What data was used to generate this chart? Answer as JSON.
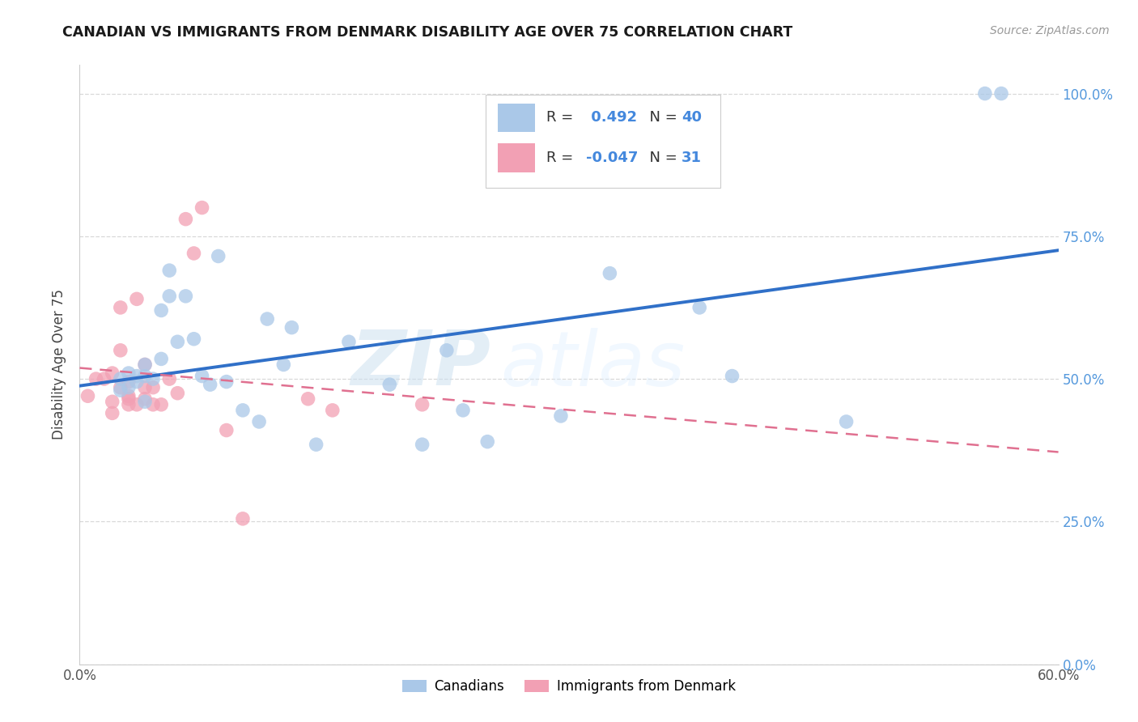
{
  "title": "CANADIAN VS IMMIGRANTS FROM DENMARK DISABILITY AGE OVER 75 CORRELATION CHART",
  "source": "Source: ZipAtlas.com",
  "ylabel": "Disability Age Over 75",
  "xlabel_ticks": [
    "0.0%",
    "",
    "",
    "",
    "",
    "",
    "60.0%"
  ],
  "xlabel_vals": [
    0.0,
    0.1,
    0.2,
    0.3,
    0.4,
    0.5,
    0.6
  ],
  "ylabel_ticks": [
    "0.0%",
    "25.0%",
    "50.0%",
    "75.0%",
    "100.0%"
  ],
  "ylabel_vals": [
    0.0,
    0.25,
    0.5,
    0.75,
    1.0
  ],
  "xlim": [
    0.0,
    0.6
  ],
  "ylim": [
    0.0,
    1.05
  ],
  "canadians_R": 0.492,
  "canadians_N": 40,
  "immigrants_R": -0.047,
  "immigrants_N": 31,
  "canadians_color": "#aac8e8",
  "immigrants_color": "#f2a0b4",
  "canadians_line_color": "#3070c8",
  "immigrants_line_color": "#e07090",
  "watermark_zip": "ZIP",
  "watermark_atlas": "atlas",
  "background_color": "#ffffff",
  "grid_color": "#d8d8d8",
  "canadians_x": [
    0.025,
    0.025,
    0.03,
    0.03,
    0.035,
    0.035,
    0.04,
    0.04,
    0.04,
    0.045,
    0.05,
    0.05,
    0.055,
    0.055,
    0.06,
    0.065,
    0.07,
    0.075,
    0.08,
    0.085,
    0.09,
    0.1,
    0.11,
    0.115,
    0.125,
    0.13,
    0.145,
    0.165,
    0.19,
    0.21,
    0.225,
    0.235,
    0.25,
    0.295,
    0.325,
    0.38,
    0.4,
    0.47,
    0.555,
    0.565
  ],
  "canadians_y": [
    0.5,
    0.48,
    0.51,
    0.485,
    0.495,
    0.505,
    0.505,
    0.525,
    0.46,
    0.5,
    0.535,
    0.62,
    0.645,
    0.69,
    0.565,
    0.645,
    0.57,
    0.505,
    0.49,
    0.715,
    0.495,
    0.445,
    0.425,
    0.605,
    0.525,
    0.59,
    0.385,
    0.565,
    0.49,
    0.385,
    0.55,
    0.445,
    0.39,
    0.435,
    0.685,
    0.625,
    0.505,
    0.425,
    1.0,
    1.0
  ],
  "immigrants_x": [
    0.005,
    0.01,
    0.015,
    0.02,
    0.02,
    0.02,
    0.025,
    0.025,
    0.025,
    0.03,
    0.03,
    0.03,
    0.03,
    0.035,
    0.035,
    0.04,
    0.04,
    0.04,
    0.045,
    0.045,
    0.05,
    0.055,
    0.06,
    0.065,
    0.07,
    0.075,
    0.09,
    0.1,
    0.14,
    0.155,
    0.21
  ],
  "immigrants_y": [
    0.47,
    0.5,
    0.5,
    0.46,
    0.44,
    0.51,
    0.485,
    0.55,
    0.625,
    0.495,
    0.465,
    0.455,
    0.47,
    0.455,
    0.64,
    0.525,
    0.485,
    0.465,
    0.485,
    0.455,
    0.455,
    0.5,
    0.475,
    0.78,
    0.72,
    0.8,
    0.41,
    0.255,
    0.465,
    0.445,
    0.455
  ]
}
